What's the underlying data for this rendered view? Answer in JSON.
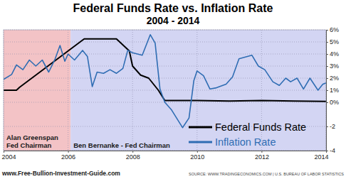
{
  "chart_data": {
    "type": "line",
    "title": "Federal Funds Rate vs. Inflation Rate",
    "subtitle": "2004 - 2014",
    "xlim": [
      2004,
      2014
    ],
    "xticks": [
      2004,
      2006,
      2008,
      2010,
      2012,
      2014
    ],
    "ylim": [
      -4,
      6
    ],
    "yticks": [
      {
        "value": 6,
        "label": "6%"
      },
      {
        "value": 5,
        "label": "5%"
      },
      {
        "value": 4,
        "label": "4%"
      },
      {
        "value": 3,
        "label": "3%"
      },
      {
        "value": 2,
        "label": "2%"
      },
      {
        "value": 1,
        "label": "1%"
      },
      {
        "value": 0,
        "label": "0%"
      },
      -2,
      -4
    ],
    "grid": true,
    "legend": "lower right",
    "regions": [
      {
        "label": [
          "Alan Greenspan",
          "Fed Chairman"
        ],
        "x0": 2004,
        "x1": 2006.08,
        "color": "#f3c3c6"
      },
      {
        "label": [
          "Ben Bernanke - Fed Chairman"
        ],
        "x0": 2006.08,
        "x1": 2014,
        "color": "#d3d5f3"
      }
    ],
    "footer": "www.Free-Bullion-Investment-Guide.com",
    "source": "SOURCE: WWW.TRADINGECONOMICS.COM | U.S. BUREAU OF LABOR STATISTICS",
    "series": [
      {
        "name": "Federal Funds Rate",
        "color": "#000000",
        "x": [
          2004.0,
          2004.4,
          2004.5,
          2004.75,
          2005.0,
          2005.25,
          2005.5,
          2005.75,
          2006.0,
          2006.25,
          2006.5,
          2007.0,
          2007.5,
          2007.7,
          2007.9,
          2008.0,
          2008.25,
          2008.5,
          2008.8,
          2009.0,
          2010.0,
          2011.0,
          2012.0,
          2013.0,
          2014.0
        ],
        "values": [
          1.0,
          1.0,
          1.25,
          1.75,
          2.25,
          2.75,
          3.25,
          3.75,
          4.25,
          4.75,
          5.25,
          5.25,
          5.25,
          4.75,
          4.25,
          3.0,
          2.25,
          2.0,
          1.0,
          0.15,
          0.15,
          0.1,
          0.15,
          0.1,
          0.08
        ]
      },
      {
        "name": "Inflation Rate",
        "color": "#2f6db3",
        "x": [
          2004.0,
          2004.25,
          2004.4,
          2004.6,
          2004.8,
          2005.0,
          2005.2,
          2005.4,
          2005.6,
          2005.75,
          2005.9,
          2006.0,
          2006.2,
          2006.45,
          2006.6,
          2006.75,
          2006.9,
          2007.1,
          2007.3,
          2007.5,
          2007.7,
          2007.85,
          2008.0,
          2008.3,
          2008.55,
          2008.7,
          2008.85,
          2009.0,
          2009.2,
          2009.55,
          2009.75,
          2009.9,
          2010.0,
          2010.2,
          2010.4,
          2010.6,
          2010.9,
          2011.1,
          2011.3,
          2011.7,
          2011.9,
          2012.1,
          2012.35,
          2012.55,
          2012.75,
          2012.9,
          2013.1,
          2013.3,
          2013.5,
          2013.75,
          2013.9,
          2014.0
        ],
        "values": [
          1.9,
          2.3,
          3.1,
          2.7,
          3.5,
          3.0,
          3.5,
          2.5,
          3.6,
          4.7,
          3.4,
          4.0,
          3.5,
          4.3,
          3.8,
          1.3,
          2.5,
          2.4,
          2.7,
          2.4,
          2.8,
          4.3,
          4.1,
          3.9,
          5.6,
          4.9,
          1.1,
          0.0,
          -0.6,
          -2.1,
          -1.3,
          1.8,
          2.6,
          2.2,
          1.1,
          1.2,
          1.5,
          2.1,
          3.6,
          3.9,
          3.0,
          2.7,
          1.7,
          1.4,
          2.0,
          1.7,
          2.0,
          1.1,
          2.0,
          1.0,
          1.5,
          1.6
        ]
      }
    ]
  }
}
